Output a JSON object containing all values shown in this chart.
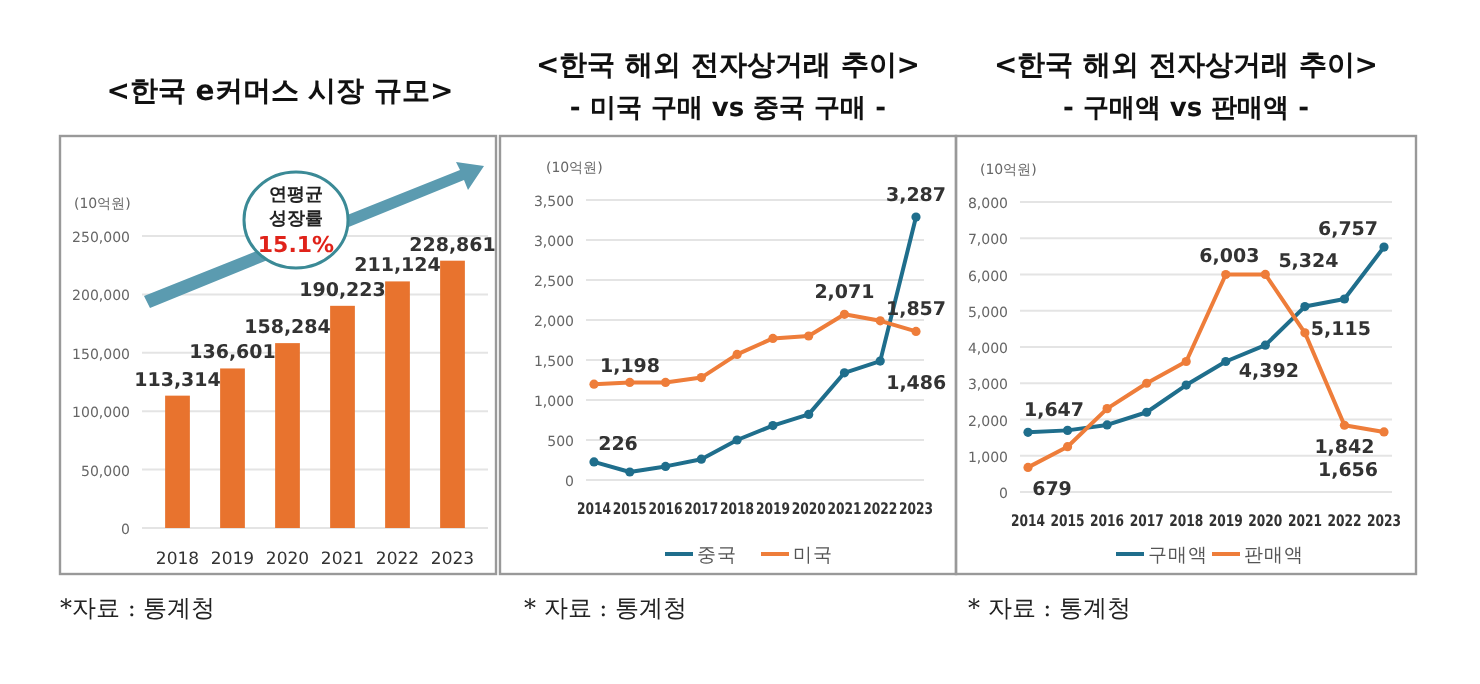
{
  "chart_data": [
    {
      "type": "bar",
      "title": "<한국 e커머스 시장 규모>",
      "ylabel": "(10억원)",
      "categories": [
        "2018",
        "2019",
        "2020",
        "2021",
        "2022",
        "2023"
      ],
      "values": [
        113314,
        136601,
        158284,
        190223,
        211124,
        228861
      ],
      "color": "#e8732e",
      "data_labels": true,
      "ylim": [
        0,
        250000
      ],
      "yticks": [
        {
          "value": 0,
          "label": "0"
        },
        {
          "value": 50000,
          "label": "50,000"
        },
        {
          "value": 100000,
          "label": "100,000"
        },
        {
          "value": 150000,
          "label": "150,000"
        },
        {
          "value": 200000,
          "label": "200,000"
        },
        {
          "value": 250000,
          "label": "250,000"
        }
      ],
      "grid": "y",
      "value_labels": [
        "113,314",
        "136,601",
        "158,284",
        "190,223",
        "211,124",
        "228,861"
      ],
      "annotations": [
        "연평균",
        "성장률",
        "15.1%",
        "*자료 : 통계청"
      ]
    },
    {
      "type": "line",
      "title": "<한국 해외 전자상거래 추이>",
      "subtitle": "- 미국 구매 vs 중국 구매 -",
      "ylabel": "(10억원)",
      "categories": [
        "2014",
        "2015",
        "2016",
        "2017",
        "2018",
        "2019",
        "2020",
        "2021",
        "2022",
        "2023"
      ],
      "series": [
        {
          "name": "중국",
          "color": "#1f6e8c",
          "values": [
            226,
            100,
            170,
            260,
            500,
            680,
            820,
            1340,
            1486,
            3287
          ],
          "value_labels": [
            "226",
            null,
            null,
            null,
            null,
            null,
            null,
            null,
            "1,486",
            "3,287"
          ]
        },
        {
          "name": "미국",
          "color": "#ee7d3a",
          "values": [
            1198,
            1220,
            1220,
            1280,
            1570,
            1770,
            1800,
            2071,
            1990,
            1857
          ],
          "value_labels": [
            "1,198",
            null,
            null,
            null,
            null,
            null,
            null,
            "2,071",
            null,
            "1,857"
          ]
        }
      ],
      "ylim": [
        0,
        3500
      ],
      "yticks": [
        {
          "value": 0,
          "label": "0"
        },
        {
          "value": 500,
          "label": "500"
        },
        {
          "value": 1000,
          "label": "1,000"
        },
        {
          "value": 1500,
          "label": "1,500"
        },
        {
          "value": 2000,
          "label": "2,000"
        },
        {
          "value": 2500,
          "label": "2,500"
        },
        {
          "value": 3000,
          "label": "3,000"
        },
        {
          "value": 3500,
          "label": "3,500"
        }
      ],
      "grid": "y",
      "legend": "bottom",
      "marker": "circle",
      "annotations": [
        "* 자료 : 통계청"
      ]
    },
    {
      "type": "line",
      "title": "<한국 해외 전자상거래 추이>",
      "subtitle": "- 구매액 vs 판매액 -",
      "ylabel": "(10억원)",
      "categories": [
        "2014",
        "2015",
        "2016",
        "2017",
        "2018",
        "2019",
        "2020",
        "2021",
        "2022",
        "2023"
      ],
      "series": [
        {
          "name": "구매액",
          "color": "#1f6e8c",
          "values": [
            1647,
            1700,
            1850,
            2200,
            2950,
            3600,
            4050,
            5115,
            5324,
            6757
          ],
          "value_labels": [
            "1,647",
            null,
            null,
            null,
            null,
            null,
            null,
            "5,115",
            "5,324",
            "6,757"
          ]
        },
        {
          "name": "판매액",
          "color": "#ee7d3a",
          "values": [
            679,
            1250,
            2300,
            3000,
            3600,
            6000,
            6003,
            4392,
            1842,
            1656
          ],
          "value_labels": [
            "679",
            null,
            null,
            null,
            null,
            null,
            "6,003",
            "4,392",
            "1,842",
            "1,656"
          ]
        }
      ],
      "ylim": [
        0,
        8000
      ],
      "yticks": [
        {
          "value": 0,
          "label": "0"
        },
        {
          "value": 1000,
          "label": "1,000"
        },
        {
          "value": 2000,
          "label": "2,000"
        },
        {
          "value": 3000,
          "label": "3,000"
        },
        {
          "value": 4000,
          "label": "4,000"
        },
        {
          "value": 5000,
          "label": "5,000"
        },
        {
          "value": 6000,
          "label": "6,000"
        },
        {
          "value": 7000,
          "label": "7,000"
        },
        {
          "value": 8000,
          "label": "8,000"
        }
      ],
      "grid": "y",
      "legend": "bottom",
      "marker": "circle",
      "annotations": [
        "* 자료 : 통계청"
      ]
    }
  ]
}
